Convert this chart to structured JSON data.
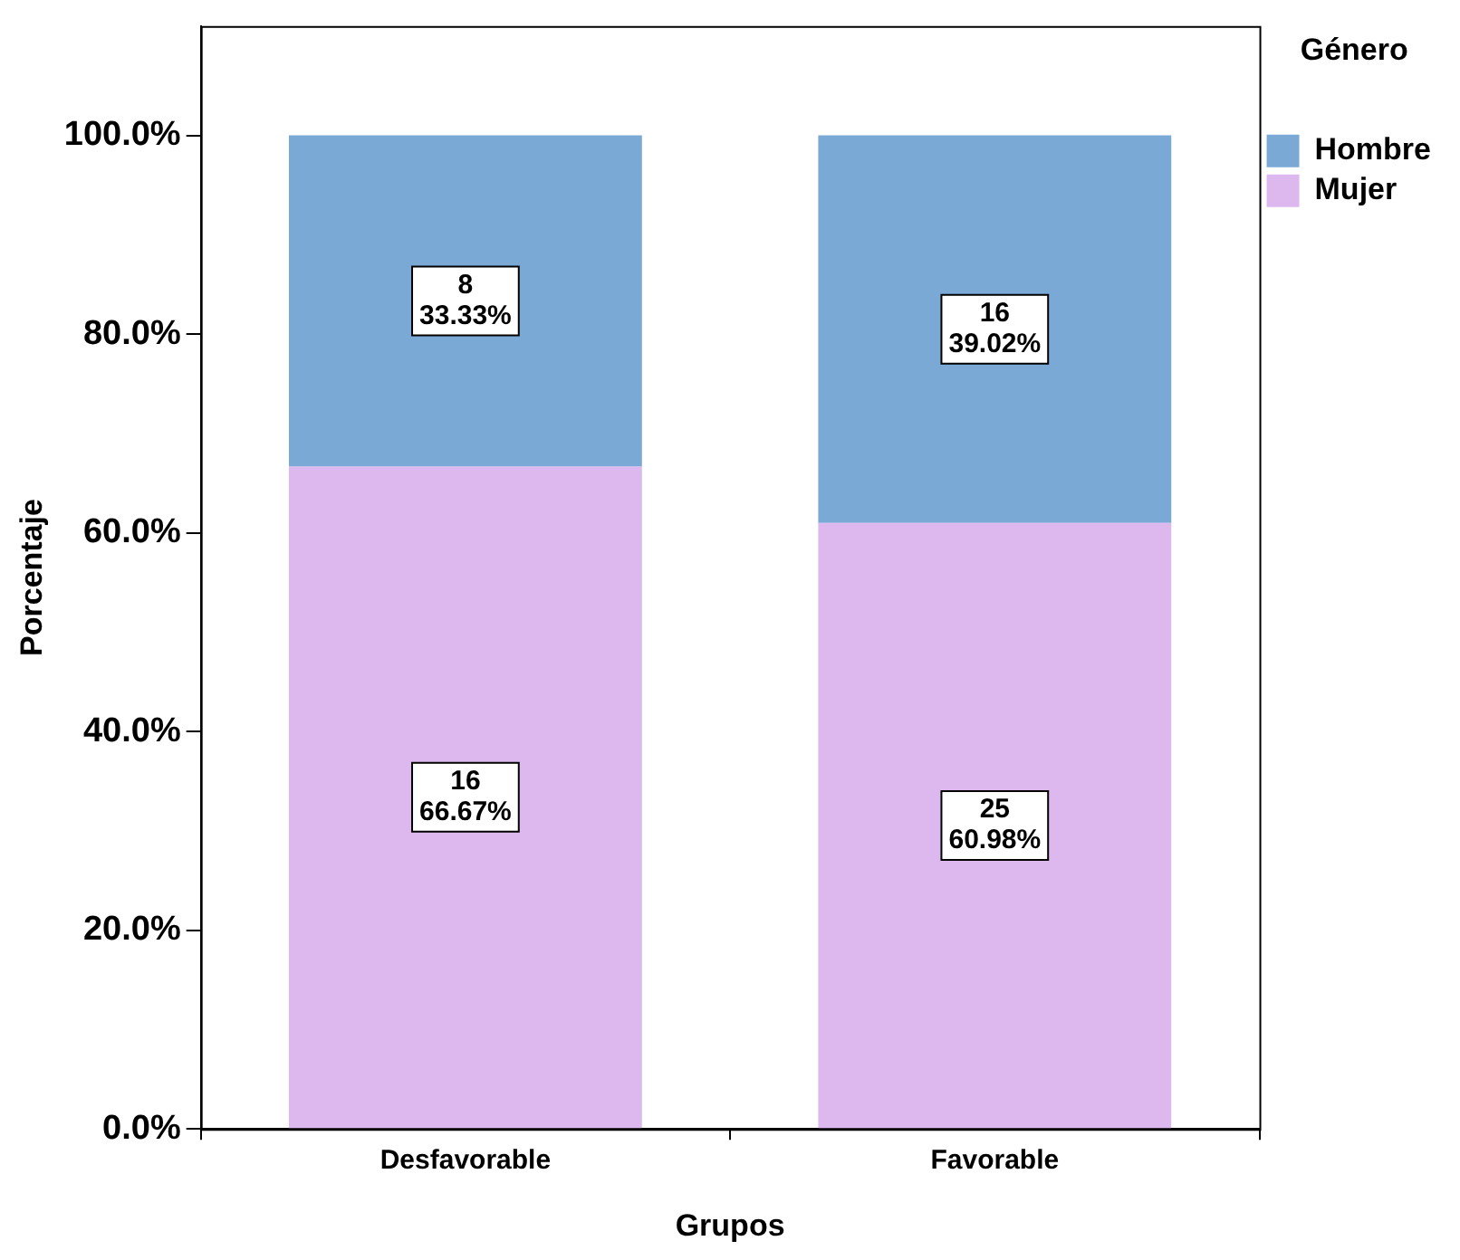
{
  "chart_data": {
    "type": "bar",
    "stacked": true,
    "xlabel": "Grupos",
    "ylabel": "Porcentaje",
    "legend_title": "Género",
    "legend": "top right",
    "grid": false,
    "categories": [
      "Desfavorable",
      "Favorable"
    ],
    "ylim": [
      0,
      111
    ],
    "yticks": [
      {
        "value": 0,
        "label": "0.0%"
      },
      {
        "value": 20,
        "label": "20.0%"
      },
      {
        "value": 40,
        "label": "40.0%"
      },
      {
        "value": 60,
        "label": "60.0%"
      },
      {
        "value": 80,
        "label": "80.0%"
      },
      {
        "value": 100,
        "label": "100.0%"
      }
    ],
    "series": [
      {
        "name": "Mujer",
        "color": "#dcb8ef",
        "values": [
          66.67,
          60.98
        ],
        "value_labels": [
          "16\n66.67%",
          "25\n60.98%"
        ]
      },
      {
        "name": "Hombre",
        "color": "#7aa9d6",
        "values": [
          33.33,
          39.02
        ],
        "value_labels": [
          "8\n33.33%",
          "16\n39.02%"
        ]
      }
    ]
  }
}
